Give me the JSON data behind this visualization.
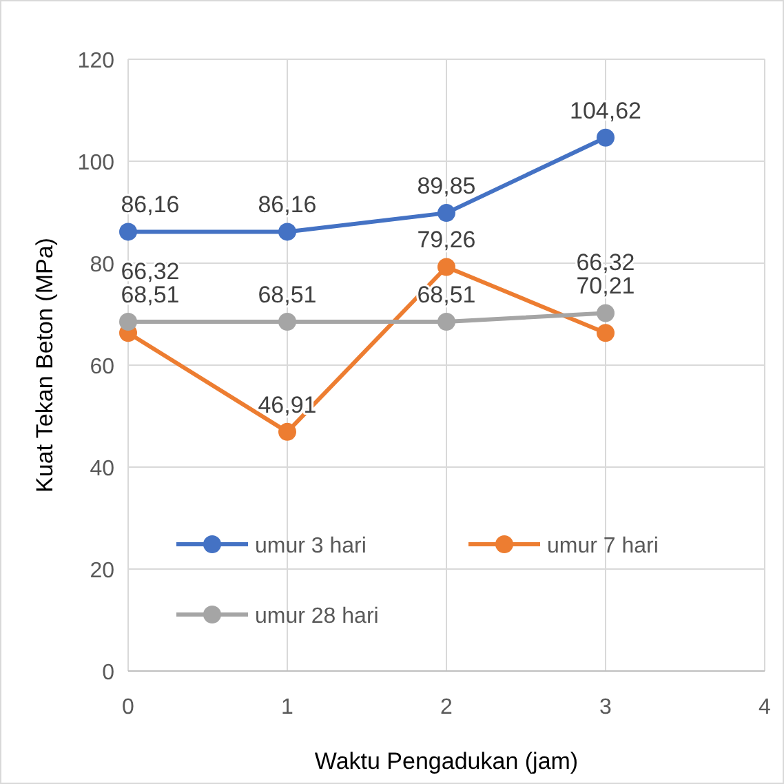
{
  "chart_data": {
    "type": "line",
    "xlabel": "Waktu Pengadukan (jam)",
    "ylabel": "Kuat Tekan Beton (MPa)",
    "x": [
      0,
      1,
      2,
      3
    ],
    "xlim": [
      0,
      4
    ],
    "xticks": [
      0,
      1,
      2,
      3,
      4
    ],
    "ylim": [
      0,
      120
    ],
    "yticks": [
      0,
      20,
      40,
      60,
      80,
      100,
      120
    ],
    "grid": true,
    "legend": "bottom left",
    "marker": "circle",
    "line_style": "solid",
    "series": [
      {
        "name": "umur 3 hari",
        "color": "#4472c4",
        "values": [
          86.16,
          86.16,
          89.85,
          104.62
        ],
        "value_labels": [
          "86,16",
          "86,16",
          "89,85",
          "104,62"
        ]
      },
      {
        "name": "umur 7 hari",
        "color": "#ed7d31",
        "values": [
          66.32,
          46.91,
          79.26,
          66.32
        ],
        "value_labels": [
          "66,32",
          "46,91",
          "79,26",
          "66,32"
        ]
      },
      {
        "name": "umur 28 hari",
        "color": "#a5a5a5",
        "values": [
          68.51,
          68.51,
          68.51,
          70.21
        ],
        "value_labels": [
          "68,51",
          "68,51",
          "68,51",
          "70,21"
        ]
      }
    ]
  }
}
